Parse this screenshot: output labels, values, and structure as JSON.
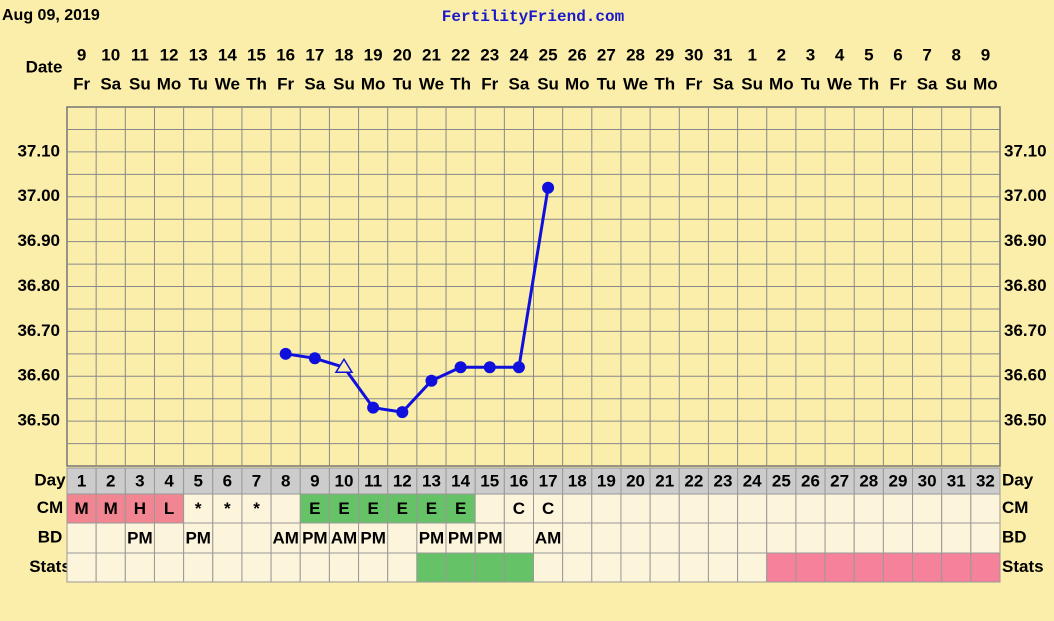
{
  "chart_data": {
    "type": "line",
    "title": "Aug 09, 2019",
    "subtitle": "FertilityFriend.com",
    "x_label": "Date",
    "x_dates": [
      "9",
      "10",
      "11",
      "12",
      "13",
      "14",
      "15",
      "16",
      "17",
      "18",
      "19",
      "20",
      "21",
      "22",
      "23",
      "24",
      "25",
      "26",
      "27",
      "28",
      "29",
      "30",
      "31",
      "1",
      "2",
      "3",
      "4",
      "5",
      "6",
      "7",
      "8",
      "9"
    ],
    "x_weekdays": [
      "Fr",
      "Sa",
      "Su",
      "Mo",
      "Tu",
      "We",
      "Th",
      "Fr",
      "Sa",
      "Su",
      "Mo",
      "Tu",
      "We",
      "Th",
      "Fr",
      "Sa",
      "Su",
      "Mo",
      "Tu",
      "We",
      "Th",
      "Fr",
      "Sa",
      "Su",
      "Mo",
      "Tu",
      "We",
      "Th",
      "Fr",
      "Sa",
      "Su",
      "Mo"
    ],
    "series": [
      {
        "color": "#1010dd",
        "values": [
          null,
          null,
          null,
          null,
          null,
          null,
          null,
          36.65,
          36.64,
          36.62,
          36.53,
          36.52,
          36.59,
          36.62,
          36.62,
          36.62,
          37.02,
          null,
          null,
          null,
          null,
          null,
          null,
          null,
          null,
          null,
          null,
          null,
          null,
          null,
          null,
          null
        ],
        "marker_styles": [
          null,
          null,
          null,
          null,
          null,
          null,
          null,
          "circle",
          "circle",
          "open-triangle",
          "circle",
          "circle",
          "circle",
          "circle",
          "circle",
          "circle",
          "circle",
          null,
          null,
          null,
          null,
          null,
          null,
          null,
          null,
          null,
          null,
          null,
          null,
          null,
          null,
          null
        ]
      }
    ],
    "ylim": [
      36.4,
      37.2
    ],
    "yticks": [
      {
        "value": 36.5,
        "label": "36.50"
      },
      {
        "value": 36.6,
        "label": "36.60"
      },
      {
        "value": 36.7,
        "label": "36.70"
      },
      {
        "value": 36.8,
        "label": "36.80"
      },
      {
        "value": 36.9,
        "label": "36.90"
      },
      {
        "value": 37.0,
        "label": "37.00"
      },
      {
        "value": 37.1,
        "label": "37.10"
      }
    ],
    "minor_yticks": [
      36.45,
      36.55,
      36.65,
      36.75,
      36.85,
      36.95,
      37.05,
      37.15
    ],
    "grid": true,
    "table": {
      "row_labels": [
        "Day",
        "CM",
        "BD",
        "Stats"
      ],
      "days": [
        "1",
        "2",
        "3",
        "4",
        "5",
        "6",
        "7",
        "8",
        "9",
        "10",
        "11",
        "12",
        "13",
        "14",
        "15",
        "16",
        "17",
        "18",
        "19",
        "20",
        "21",
        "22",
        "23",
        "24",
        "25",
        "26",
        "27",
        "28",
        "29",
        "30",
        "31",
        "32"
      ],
      "cm": [
        "M",
        "M",
        "H",
        "L",
        "*",
        "*",
        "*",
        null,
        "E",
        "E",
        "E",
        "E",
        "E",
        "E",
        null,
        "C",
        "C",
        null,
        null,
        null,
        null,
        null,
        null,
        null,
        null,
        null,
        null,
        null,
        null,
        null,
        null,
        null
      ],
      "cm_colors": [
        "#f28592",
        "#f28592",
        "#f28592",
        "#f28592",
        null,
        null,
        null,
        null,
        "#66c266",
        "#66c266",
        "#66c266",
        "#66c266",
        "#66c266",
        "#66c266",
        null,
        null,
        null,
        null,
        null,
        null,
        null,
        null,
        null,
        null,
        null,
        null,
        null,
        null,
        null,
        null,
        null,
        null
      ],
      "bd": [
        null,
        null,
        "PM",
        null,
        "PM",
        null,
        null,
        "AM",
        "PM",
        "AM",
        "PM",
        null,
        "PM",
        "PM",
        "PM",
        null,
        "AM",
        null,
        null,
        null,
        null,
        null,
        null,
        null,
        null,
        null,
        null,
        null,
        null,
        null,
        null,
        null
      ],
      "stats_colors": [
        null,
        null,
        null,
        null,
        null,
        null,
        null,
        null,
        null,
        null,
        null,
        null,
        "#66c266",
        "#66c266",
        "#66c266",
        "#66c266",
        null,
        null,
        null,
        null,
        null,
        null,
        null,
        null,
        "#f6819b",
        "#f6819b",
        "#f6819b",
        "#f6819b",
        "#f6819b",
        "#f6819b",
        "#f6819b",
        "#f6819b"
      ]
    }
  }
}
